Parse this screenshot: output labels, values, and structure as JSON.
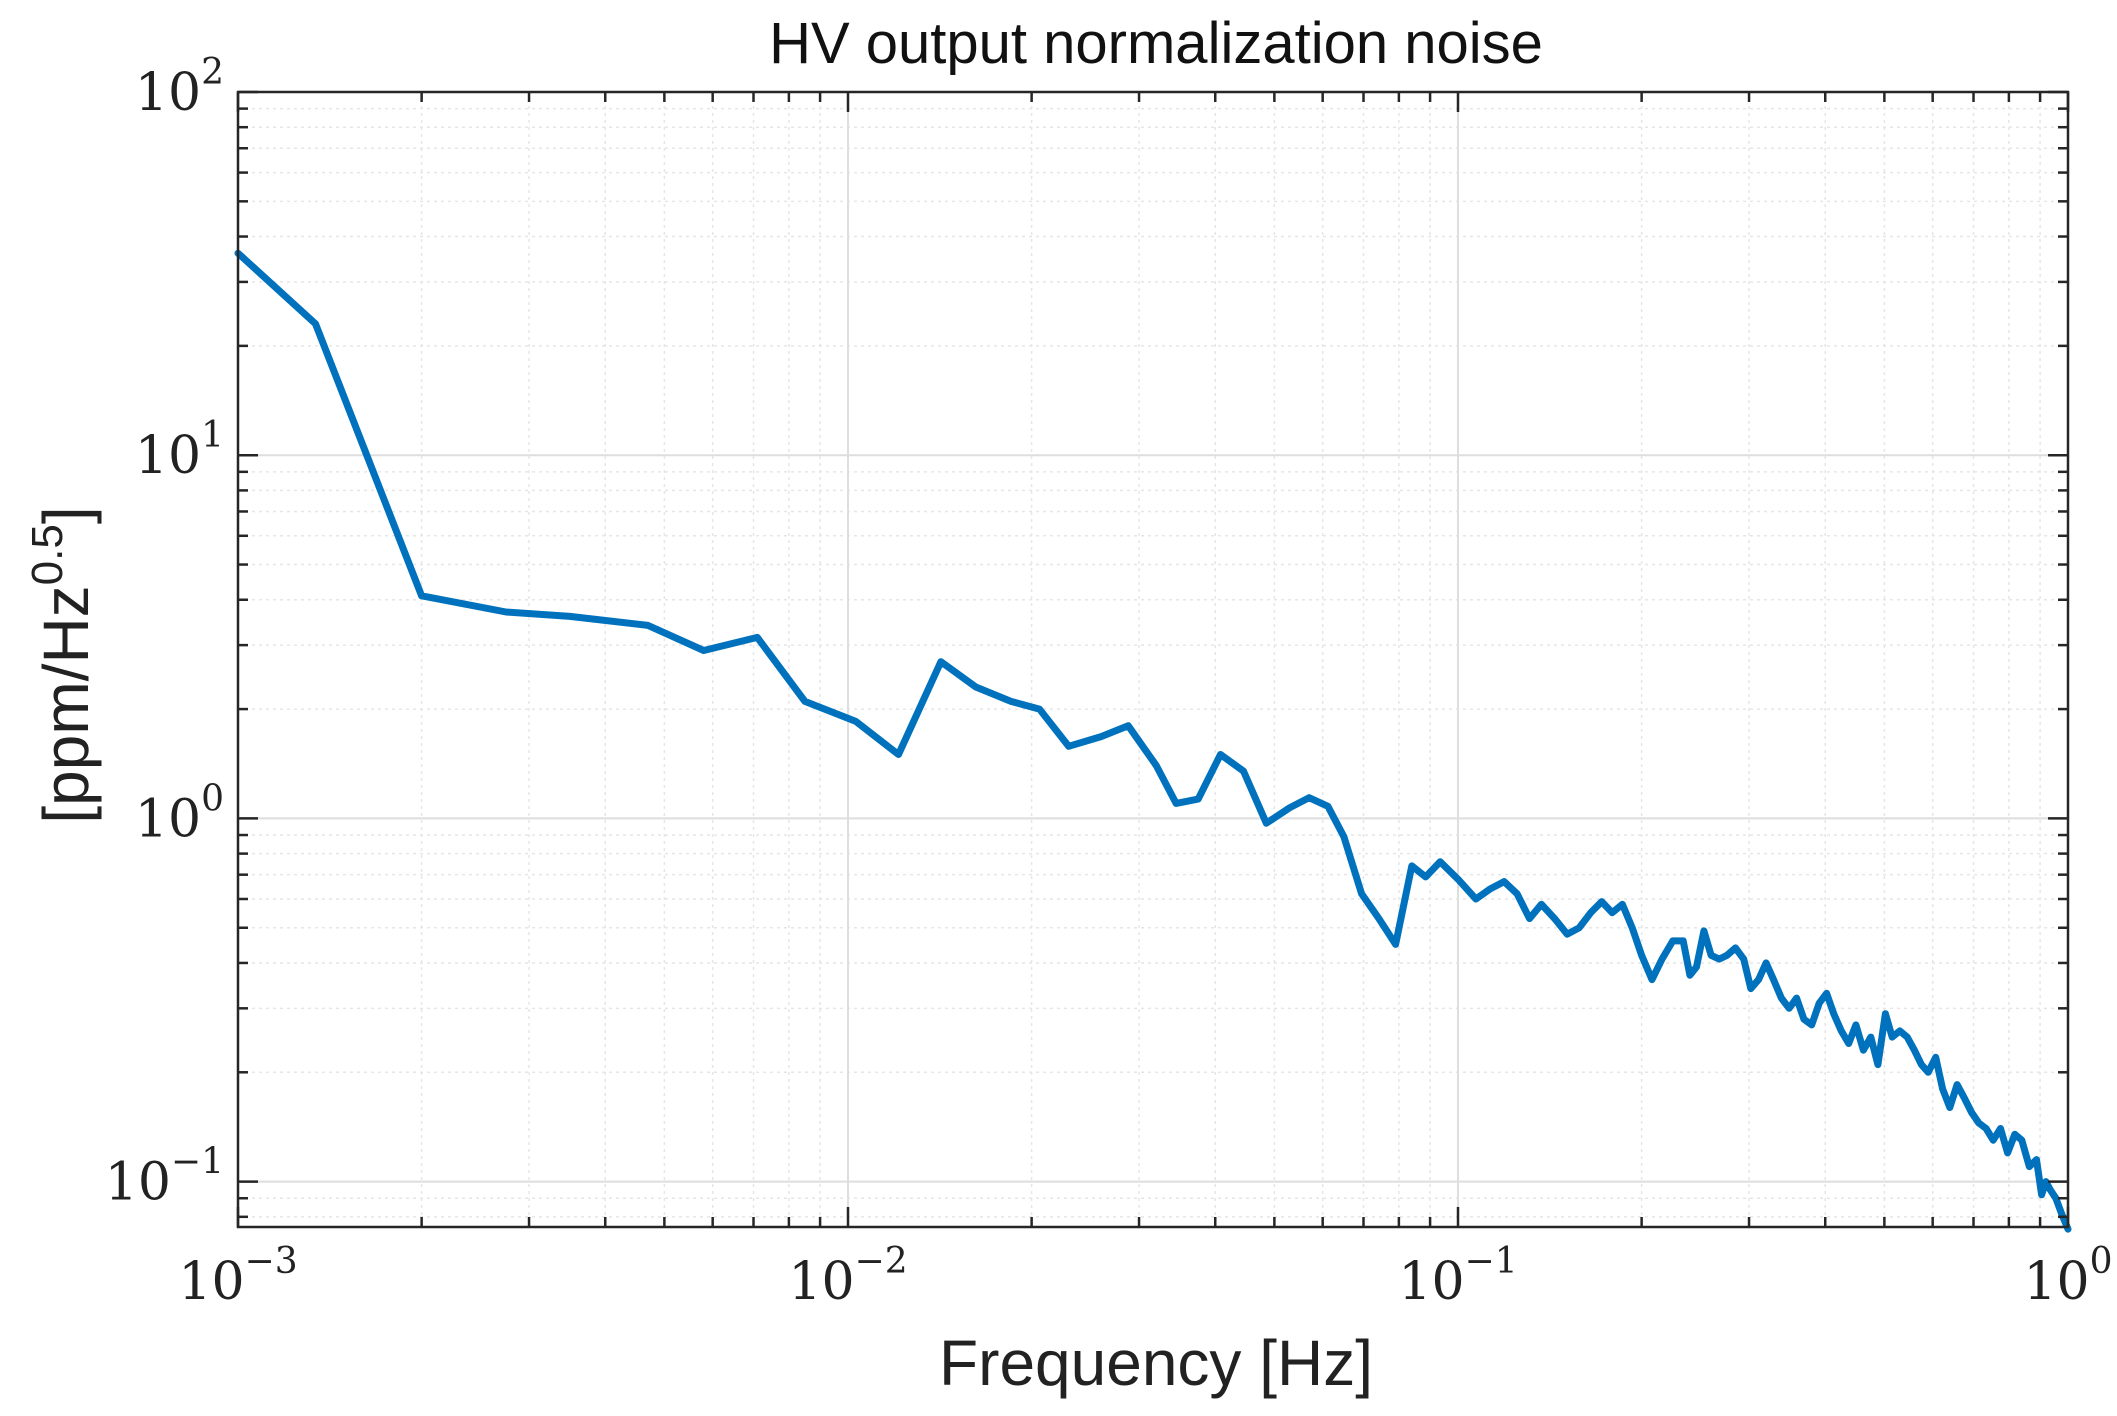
{
  "chart_data": {
    "type": "line",
    "title": "HV output normalization noise",
    "xlabel": "Frequency [Hz]",
    "ylabel": "[ppm/Hz",
    "ylabel_exponent": "0.5",
    "ylabel_close": "]",
    "xscale": "log",
    "yscale": "log",
    "xlim": [
      0.001,
      1
    ],
    "ylim": [
      0.075,
      100
    ],
    "grid": true,
    "minor_grid": true,
    "x_ticks": [
      {
        "value": 0.001,
        "base": "10",
        "exp": "−3"
      },
      {
        "value": 0.01,
        "base": "10",
        "exp": "−2"
      },
      {
        "value": 0.1,
        "base": "10",
        "exp": "−1"
      },
      {
        "value": 1,
        "base": "10",
        "exp": "0"
      }
    ],
    "y_ticks": [
      {
        "value": 0.1,
        "base": "10",
        "exp": "−1"
      },
      {
        "value": 1,
        "base": "10",
        "exp": "0"
      },
      {
        "value": 10,
        "base": "10",
        "exp": "1"
      },
      {
        "value": 100,
        "base": "10",
        "exp": "2"
      }
    ],
    "series": [
      {
        "name": "HV output normalization noise",
        "color": "#0072BD",
        "x": [
          0.001,
          0.00134,
          0.002,
          0.00275,
          0.0035,
          0.0047,
          0.0058,
          0.0071,
          0.0085,
          0.0103,
          0.0121,
          0.0142,
          0.0162,
          0.0185,
          0.0206,
          0.023,
          0.026,
          0.0288,
          0.032,
          0.0345,
          0.0375,
          0.0408,
          0.0445,
          0.0485,
          0.053,
          0.057,
          0.0612,
          0.065,
          0.0695,
          0.0742,
          0.079,
          0.084,
          0.0885,
          0.0935,
          0.1,
          0.107,
          0.113,
          0.119,
          0.125,
          0.131,
          0.137,
          0.144,
          0.151,
          0.158,
          0.165,
          0.172,
          0.179,
          0.186,
          0.193,
          0.2,
          0.208,
          0.216,
          0.225,
          0.234,
          0.24,
          0.246,
          0.253,
          0.26,
          0.268,
          0.276,
          0.285,
          0.294,
          0.302,
          0.311,
          0.32,
          0.329,
          0.339,
          0.349,
          0.359,
          0.369,
          0.38,
          0.391,
          0.402,
          0.413,
          0.425,
          0.437,
          0.449,
          0.462,
          0.475,
          0.488,
          0.502,
          0.515,
          0.53,
          0.545,
          0.56,
          0.575,
          0.59,
          0.607,
          0.623,
          0.64,
          0.658,
          0.676,
          0.695,
          0.714,
          0.734,
          0.754,
          0.775,
          0.796,
          0.818,
          0.84,
          0.864,
          0.888,
          0.905,
          0.92,
          0.935,
          0.955,
          0.975,
          1.0
        ],
        "y": [
          36,
          23,
          4.1,
          3.7,
          3.6,
          3.4,
          2.9,
          3.15,
          2.1,
          1.85,
          1.5,
          2.7,
          2.3,
          2.1,
          2.0,
          1.58,
          1.68,
          1.8,
          1.4,
          1.1,
          1.13,
          1.5,
          1.35,
          0.97,
          1.07,
          1.14,
          1.08,
          0.89,
          0.62,
          0.53,
          0.45,
          0.74,
          0.69,
          0.76,
          0.68,
          0.6,
          0.64,
          0.67,
          0.62,
          0.53,
          0.58,
          0.53,
          0.48,
          0.5,
          0.55,
          0.59,
          0.55,
          0.58,
          0.5,
          0.42,
          0.36,
          0.41,
          0.46,
          0.46,
          0.37,
          0.39,
          0.49,
          0.42,
          0.41,
          0.42,
          0.44,
          0.41,
          0.34,
          0.36,
          0.4,
          0.36,
          0.32,
          0.3,
          0.32,
          0.28,
          0.27,
          0.31,
          0.33,
          0.29,
          0.26,
          0.24,
          0.27,
          0.23,
          0.25,
          0.21,
          0.29,
          0.25,
          0.26,
          0.25,
          0.23,
          0.21,
          0.2,
          0.22,
          0.18,
          0.16,
          0.185,
          0.17,
          0.155,
          0.145,
          0.14,
          0.13,
          0.14,
          0.12,
          0.135,
          0.13,
          0.11,
          0.115,
          0.092,
          0.1,
          0.095,
          0.09,
          0.082,
          0.074
        ]
      }
    ]
  }
}
